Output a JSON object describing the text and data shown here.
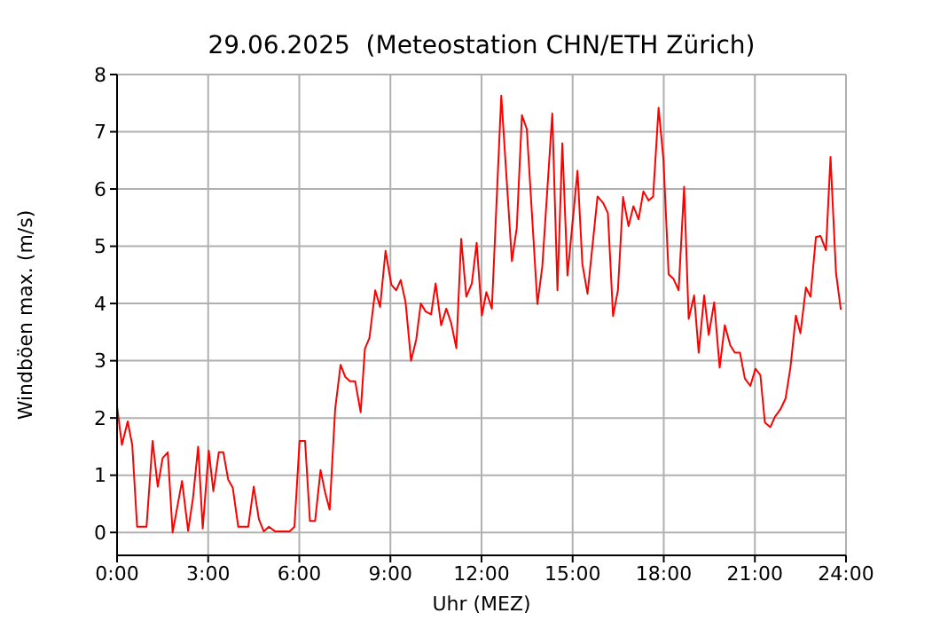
{
  "chart_data": {
    "type": "line",
    "title": "29.06.2025  (Meteostation CHN/ETH Zürich)",
    "xlabel": "Uhr (MEZ)",
    "ylabel": "Windböen max. (m/s)",
    "x": [
      0,
      0.16,
      0.35,
      0.5,
      0.66,
      0.97,
      1.17,
      1.34,
      1.5,
      1.67,
      1.83,
      2.14,
      2.34,
      2.5,
      2.67,
      2.82,
      3.02,
      3.17,
      3.35,
      3.5,
      3.66,
      3.81,
      3.99,
      4.32,
      4.5,
      4.67,
      4.83,
      5.0,
      5.2,
      5.68,
      5.84,
      6.01,
      6.19,
      6.35,
      6.52,
      6.7,
      6.85,
      7.0,
      7.18,
      7.36,
      7.51,
      7.67,
      7.84,
      8.02,
      8.16,
      8.31,
      8.5,
      8.66,
      8.84,
      9.03,
      9.19,
      9.34,
      9.5,
      9.68,
      9.85,
      10.0,
      10.16,
      10.34,
      10.49,
      10.67,
      10.84,
      11.0,
      11.17,
      11.33,
      11.5,
      11.68,
      11.84,
      12.01,
      12.16,
      12.34,
      12.65,
      13.0,
      13.16,
      13.33,
      13.49,
      13.84,
      14.0,
      14.33,
      14.5,
      14.66,
      14.83,
      15.16,
      15.32,
      15.49,
      15.82,
      16.0,
      16.16,
      16.33,
      16.49,
      16.66,
      16.84,
      17.0,
      17.17,
      17.33,
      17.5,
      17.65,
      17.83,
      17.99,
      18.16,
      18.32,
      18.49,
      18.67,
      18.82,
      19.0,
      19.15,
      19.33,
      19.48,
      19.66,
      19.84,
      20.01,
      20.19,
      20.34,
      20.51,
      20.67,
      20.85,
      21.02,
      21.18,
      21.33,
      21.51,
      21.66,
      21.84,
      22.01,
      22.17,
      22.35,
      22.5,
      22.68,
      22.83,
      23.01,
      23.16,
      23.34,
      23.49,
      23.67,
      23.83
    ],
    "series": [
      {
        "color": "#ff0000",
        "values": [
          2.2,
          1.53,
          1.94,
          1.53,
          0.1,
          0.1,
          1.6,
          0.8,
          1.3,
          1.4,
          0,
          0.9,
          0.03,
          0.6,
          1.5,
          0.07,
          1.43,
          0.72,
          1.4,
          1.4,
          0.92,
          0.78,
          0.1,
          0.1,
          0.8,
          0.23,
          0.02,
          0.1,
          0.02,
          0.02,
          0.1,
          1.6,
          1.6,
          0.2,
          0.2,
          1.09,
          0.7,
          0.4,
          2.15,
          2.93,
          2.72,
          2.64,
          2.64,
          2.1,
          3.21,
          3.4,
          4.23,
          3.94,
          4.92,
          4.33,
          4.23,
          4.41,
          4.02,
          3.0,
          3.37,
          4.0,
          3.86,
          3.81,
          4.35,
          3.62,
          3.91,
          3.66,
          3.22,
          5.13,
          4.12,
          4.35,
          5.06,
          3.79,
          4.2,
          3.91,
          7.63,
          4.74,
          5.32,
          7.29,
          7.05,
          3.99,
          4.64,
          7.32,
          4.23,
          6.8,
          4.49,
          6.32,
          4.69,
          4.17,
          5.87,
          5.76,
          5.58,
          3.78,
          4.23,
          5.86,
          5.35,
          5.7,
          5.47,
          5.96,
          5.8,
          5.87,
          7.42,
          6.51,
          4.51,
          4.43,
          4.23,
          6.04,
          3.73,
          4.14,
          3.14,
          4.14,
          3.45,
          4.02,
          2.88,
          3.62,
          3.27,
          3.14,
          3.14,
          2.69,
          2.56,
          2.86,
          2.75,
          1.92,
          1.84,
          2.02,
          2.15,
          2.34,
          2.88,
          3.79,
          3.48,
          4.28,
          4.12,
          5.16,
          5.18,
          4.93,
          6.56,
          4.54,
          3.89
        ]
      }
    ],
    "xlim": [
      0,
      24
    ],
    "xticks": [
      {
        "value": 0,
        "label": "0:00"
      },
      {
        "value": 3,
        "label": "3:00"
      },
      {
        "value": 6,
        "label": "6:00"
      },
      {
        "value": 9,
        "label": "9:00"
      },
      {
        "value": 12,
        "label": "12:00"
      },
      {
        "value": 15,
        "label": "15:00"
      },
      {
        "value": 18,
        "label": "18:00"
      },
      {
        "value": 21,
        "label": "21:00"
      },
      {
        "value": 24,
        "label": "24:00"
      }
    ],
    "ylim": [
      -0.4,
      8
    ],
    "yticks": [
      0,
      1,
      2,
      3,
      4,
      5,
      6,
      7,
      8
    ],
    "grid": true,
    "marker": "none",
    "line_style": "solid"
  }
}
